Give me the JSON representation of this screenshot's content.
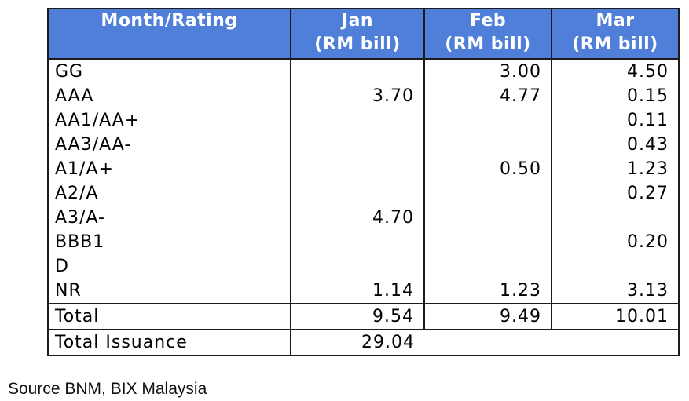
{
  "table": {
    "header": {
      "col0": "Month/Rating",
      "months": [
        {
          "name": "Jan",
          "unit": "(RM bill)"
        },
        {
          "name": "Feb",
          "unit": "(RM bill)"
        },
        {
          "name": "Mar",
          "unit": "(RM bill)"
        }
      ]
    },
    "rows": [
      {
        "label": "GG",
        "jan": "",
        "feb": "3.00",
        "mar": "4.50"
      },
      {
        "label": "AAA",
        "jan": "3.70",
        "feb": "4.77",
        "mar": "0.15"
      },
      {
        "label": "AA1/AA+",
        "jan": "",
        "feb": "",
        "mar": "0.11"
      },
      {
        "label": "AA3/AA-",
        "jan": "",
        "feb": "",
        "mar": "0.43"
      },
      {
        "label": "A1/A+",
        "jan": "",
        "feb": "0.50",
        "mar": "1.23"
      },
      {
        "label": "A2/A",
        "jan": "",
        "feb": "",
        "mar": "0.27"
      },
      {
        "label": "A3/A-",
        "jan": "4.70",
        "feb": "",
        "mar": ""
      },
      {
        "label": "BBB1",
        "jan": "",
        "feb": "",
        "mar": "0.20"
      },
      {
        "label": "D",
        "jan": "",
        "feb": "",
        "mar": ""
      },
      {
        "label": "NR",
        "jan": "1.14",
        "feb": "1.23",
        "mar": "3.13"
      }
    ],
    "total": {
      "label": "Total",
      "jan": "9.54",
      "feb": "9.49",
      "mar": "10.01"
    },
    "total_issuance": {
      "label": "Total Issuance",
      "value": "29.04"
    }
  },
  "source": "Source BNM, BIX Malaysia",
  "colors": {
    "header_bg": "#4f7fd9",
    "header_text": "#ffffff",
    "border": "#1c1c1c"
  }
}
